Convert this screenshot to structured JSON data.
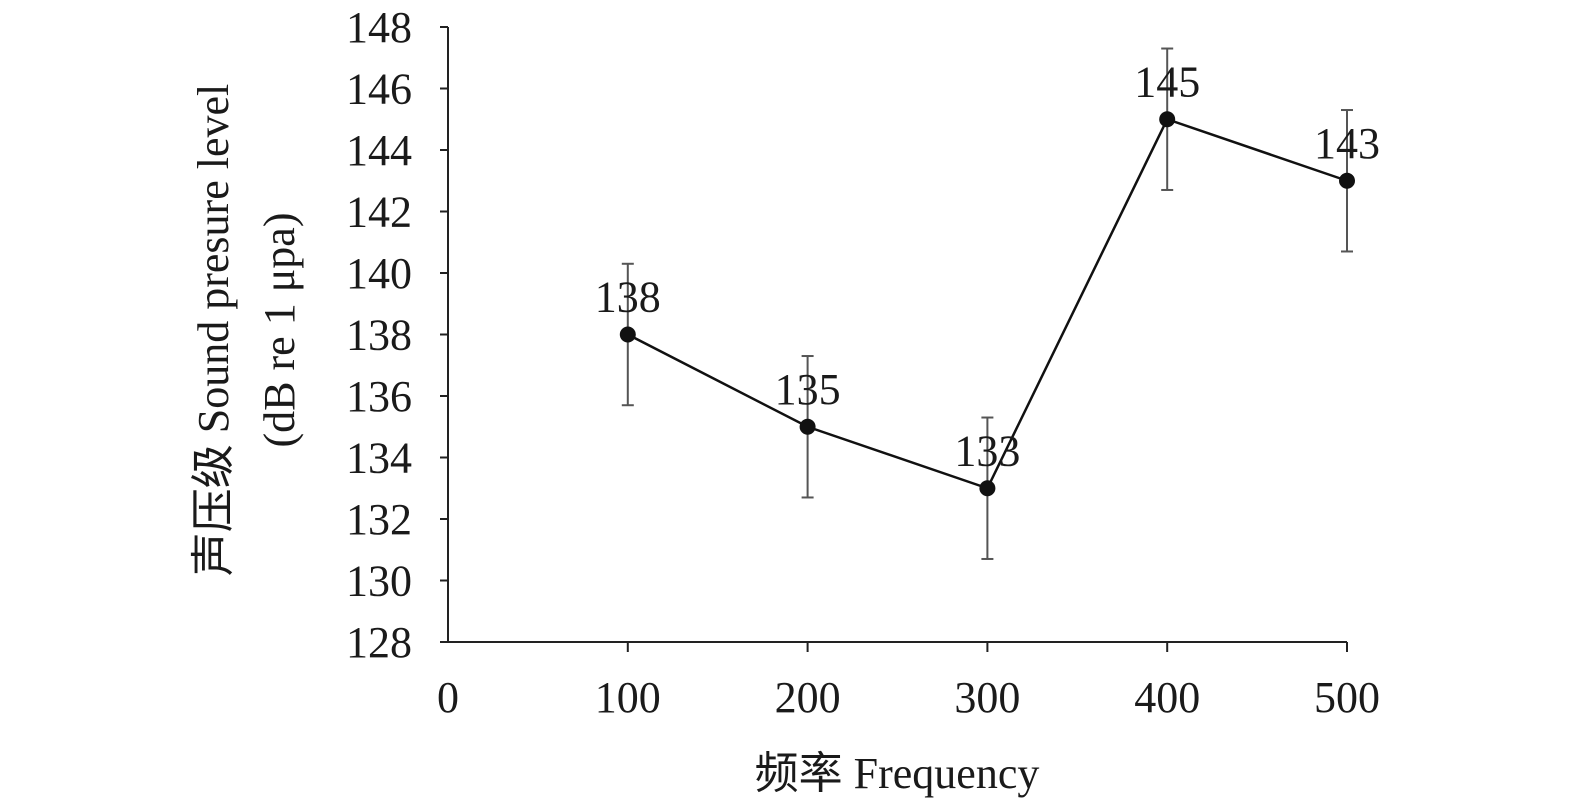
{
  "chart_data": {
    "type": "line",
    "xlabel": "频率 Frequency",
    "ylabel_lines": [
      "声压级 Sound presure level",
      "(dB re 1 μpa)"
    ],
    "xlim": [
      0,
      500
    ],
    "ylim": [
      128,
      148
    ],
    "x_ticks": [
      0,
      100,
      200,
      300,
      400,
      500
    ],
    "y_ticks": [
      128,
      130,
      132,
      134,
      136,
      138,
      140,
      142,
      144,
      146,
      148
    ],
    "grid": false,
    "legend": "none",
    "series": [
      {
        "x": [
          100,
          200,
          300,
          400,
          500
        ],
        "y": [
          138,
          135,
          133,
          145,
          143
        ],
        "error": [
          2.3,
          2.3,
          2.3,
          2.3,
          2.3
        ],
        "data_labels": [
          "138",
          "135",
          "133",
          "145",
          "143"
        ],
        "color": "#111111",
        "errorbar_color": "#555555",
        "marker": "filled-circle"
      }
    ]
  }
}
